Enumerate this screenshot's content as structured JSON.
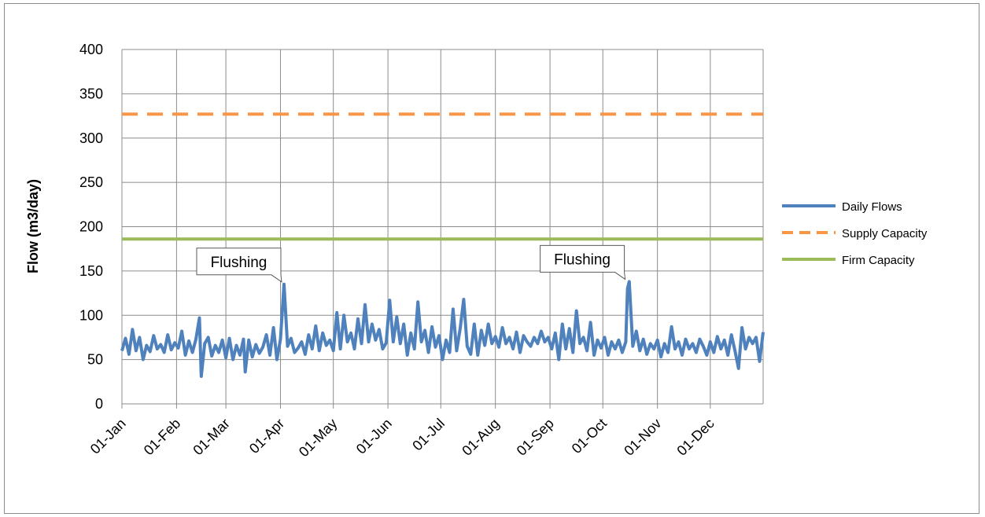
{
  "chart_data": {
    "type": "line",
    "title": "",
    "xlabel": "",
    "ylabel": "Flow (m3/day)",
    "ylim": [
      0,
      400
    ],
    "yticks": [
      0,
      50,
      100,
      150,
      200,
      250,
      300,
      350,
      400
    ],
    "xlim": [
      "01-Jan",
      "31-Dec"
    ],
    "categories": [
      "01-Jan",
      "01-Feb",
      "01-Mar",
      "01-Apr",
      "01-May",
      "01-Jun",
      "01-Jul",
      "01-Aug",
      "01-Sep",
      "01-Oct",
      "01-Nov",
      "01-Dec"
    ],
    "grid": true,
    "legend_position": "right",
    "series": [
      {
        "name": "Daily Flows",
        "color": "#4f81bd",
        "style": "solid",
        "points": [
          [
            "01-Jan",
            60
          ],
          [
            "03-Jan",
            74
          ],
          [
            "05-Jan",
            56
          ],
          [
            "07-Jan",
            84
          ],
          [
            "09-Jan",
            60
          ],
          [
            "11-Jan",
            75
          ],
          [
            "13-Jan",
            50
          ],
          [
            "15-Jan",
            66
          ],
          [
            "17-Jan",
            59
          ],
          [
            "19-Jan",
            77
          ],
          [
            "21-Jan",
            62
          ],
          [
            "23-Jan",
            67
          ],
          [
            "25-Jan",
            58
          ],
          [
            "27-Jan",
            78
          ],
          [
            "29-Jan",
            61
          ],
          [
            "31-Jan",
            69
          ],
          [
            "02-Feb",
            63
          ],
          [
            "04-Feb",
            82
          ],
          [
            "06-Feb",
            55
          ],
          [
            "08-Feb",
            71
          ],
          [
            "10-Feb",
            58
          ],
          [
            "12-Feb",
            73
          ],
          [
            "14-Feb",
            97
          ],
          [
            "15-Feb",
            31
          ],
          [
            "17-Feb",
            68
          ],
          [
            "19-Feb",
            75
          ],
          [
            "21-Feb",
            54
          ],
          [
            "23-Feb",
            66
          ],
          [
            "25-Feb",
            58
          ],
          [
            "27-Feb",
            72
          ],
          [
            "01-Mar",
            52
          ],
          [
            "03-Mar",
            74
          ],
          [
            "05-Mar",
            50
          ],
          [
            "07-Mar",
            66
          ],
          [
            "09-Mar",
            55
          ],
          [
            "11-Mar",
            73
          ],
          [
            "12-Mar",
            36
          ],
          [
            "14-Mar",
            72
          ],
          [
            "16-Mar",
            53
          ],
          [
            "18-Mar",
            67
          ],
          [
            "20-Mar",
            57
          ],
          [
            "22-Mar",
            64
          ],
          [
            "24-Mar",
            78
          ],
          [
            "26-Mar",
            55
          ],
          [
            "28-Mar",
            86
          ],
          [
            "30-Mar",
            50
          ],
          [
            "01-Apr",
            73
          ],
          [
            "03-Apr",
            135
          ],
          [
            "05-Apr",
            65
          ],
          [
            "07-Apr",
            74
          ],
          [
            "09-Apr",
            58
          ],
          [
            "11-Apr",
            63
          ],
          [
            "13-Apr",
            70
          ],
          [
            "15-Apr",
            56
          ],
          [
            "17-Apr",
            78
          ],
          [
            "19-Apr",
            62
          ],
          [
            "21-Apr",
            88
          ],
          [
            "23-Apr",
            60
          ],
          [
            "25-Apr",
            80
          ],
          [
            "27-Apr",
            66
          ],
          [
            "29-Apr",
            72
          ],
          [
            "01-May",
            60
          ],
          [
            "03-May",
            103
          ],
          [
            "05-May",
            62
          ],
          [
            "07-May",
            100
          ],
          [
            "09-May",
            70
          ],
          [
            "11-May",
            80
          ],
          [
            "13-May",
            62
          ],
          [
            "15-May",
            96
          ],
          [
            "17-May",
            68
          ],
          [
            "19-May",
            112
          ],
          [
            "21-May",
            70
          ],
          [
            "23-May",
            90
          ],
          [
            "25-May",
            72
          ],
          [
            "27-May",
            84
          ],
          [
            "29-May",
            62
          ],
          [
            "31-May",
            69
          ],
          [
            "02-Jun",
            117
          ],
          [
            "04-Jun",
            70
          ],
          [
            "06-Jun",
            98
          ],
          [
            "08-Jun",
            68
          ],
          [
            "10-Jun",
            90
          ],
          [
            "12-Jun",
            55
          ],
          [
            "14-Jun",
            80
          ],
          [
            "16-Jun",
            62
          ],
          [
            "18-Jun",
            115
          ],
          [
            "20-Jun",
            70
          ],
          [
            "22-Jun",
            83
          ],
          [
            "24-Jun",
            58
          ],
          [
            "26-Jun",
            87
          ],
          [
            "28-Jun",
            64
          ],
          [
            "30-Jun",
            77
          ],
          [
            "02-Jul",
            50
          ],
          [
            "04-Jul",
            72
          ],
          [
            "06-Jul",
            58
          ],
          [
            "08-Jul",
            107
          ],
          [
            "10-Jul",
            60
          ],
          [
            "12-Jul",
            85
          ],
          [
            "14-Jul",
            118
          ],
          [
            "16-Jul",
            65
          ],
          [
            "18-Jul",
            56
          ],
          [
            "20-Jul",
            90
          ],
          [
            "22-Jul",
            55
          ],
          [
            "24-Jul",
            83
          ],
          [
            "26-Jul",
            66
          ],
          [
            "28-Jul",
            90
          ],
          [
            "30-Jul",
            68
          ],
          [
            "01-Aug",
            76
          ],
          [
            "03-Aug",
            64
          ],
          [
            "05-Aug",
            86
          ],
          [
            "07-Aug",
            68
          ],
          [
            "09-Aug",
            75
          ],
          [
            "11-Aug",
            62
          ],
          [
            "13-Aug",
            81
          ],
          [
            "15-Aug",
            58
          ],
          [
            "17-Aug",
            77
          ],
          [
            "19-Aug",
            70
          ],
          [
            "21-Aug",
            65
          ],
          [
            "23-Aug",
            75
          ],
          [
            "25-Aug",
            68
          ],
          [
            "27-Aug",
            82
          ],
          [
            "29-Aug",
            70
          ],
          [
            "31-Aug",
            75
          ],
          [
            "02-Sep",
            62
          ],
          [
            "04-Sep",
            80
          ],
          [
            "06-Sep",
            50
          ],
          [
            "08-Sep",
            90
          ],
          [
            "10-Sep",
            62
          ],
          [
            "12-Sep",
            85
          ],
          [
            "14-Sep",
            58
          ],
          [
            "16-Sep",
            105
          ],
          [
            "18-Sep",
            68
          ],
          [
            "20-Sep",
            75
          ],
          [
            "22-Sep",
            60
          ],
          [
            "24-Sep",
            92
          ],
          [
            "26-Sep",
            55
          ],
          [
            "28-Sep",
            72
          ],
          [
            "30-Sep",
            63
          ],
          [
            "02-Oct",
            75
          ],
          [
            "04-Oct",
            55
          ],
          [
            "06-Oct",
            70
          ],
          [
            "08-Oct",
            62
          ],
          [
            "10-Oct",
            72
          ],
          [
            "12-Oct",
            58
          ],
          [
            "14-Oct",
            70
          ],
          [
            "15-Oct",
            130
          ],
          [
            "16-Oct",
            138
          ],
          [
            "18-Oct",
            65
          ],
          [
            "20-Oct",
            82
          ],
          [
            "22-Oct",
            60
          ],
          [
            "24-Oct",
            73
          ],
          [
            "26-Oct",
            56
          ],
          [
            "28-Oct",
            68
          ],
          [
            "30-Oct",
            62
          ],
          [
            "01-Nov",
            72
          ],
          [
            "03-Nov",
            53
          ],
          [
            "05-Nov",
            68
          ],
          [
            "07-Nov",
            58
          ],
          [
            "09-Nov",
            87
          ],
          [
            "11-Nov",
            62
          ],
          [
            "13-Nov",
            70
          ],
          [
            "15-Nov",
            55
          ],
          [
            "17-Nov",
            73
          ],
          [
            "19-Nov",
            62
          ],
          [
            "21-Nov",
            68
          ],
          [
            "23-Nov",
            58
          ],
          [
            "25-Nov",
            73
          ],
          [
            "27-Nov",
            65
          ],
          [
            "29-Nov",
            55
          ],
          [
            "01-Dec",
            70
          ],
          [
            "03-Dec",
            58
          ],
          [
            "05-Dec",
            76
          ],
          [
            "07-Dec",
            62
          ],
          [
            "09-Dec",
            72
          ],
          [
            "11-Dec",
            55
          ],
          [
            "13-Dec",
            78
          ],
          [
            "15-Dec",
            60
          ],
          [
            "17-Dec",
            40
          ],
          [
            "19-Dec",
            86
          ],
          [
            "21-Dec",
            62
          ],
          [
            "23-Dec",
            75
          ],
          [
            "25-Dec",
            68
          ],
          [
            "27-Dec",
            75
          ],
          [
            "29-Dec",
            48
          ],
          [
            "31-Dec",
            81
          ]
        ]
      },
      {
        "name": "Supply Capacity",
        "color": "#f79646",
        "style": "dashed",
        "value": 327
      },
      {
        "name": "Firm Capacity",
        "color": "#9bbb59",
        "style": "solid",
        "value": 186
      }
    ],
    "annotations": [
      {
        "text": "Flushing",
        "date": "03-Apr",
        "value": 135
      },
      {
        "text": "Flushing",
        "date": "15-Oct",
        "value": 138
      }
    ]
  }
}
